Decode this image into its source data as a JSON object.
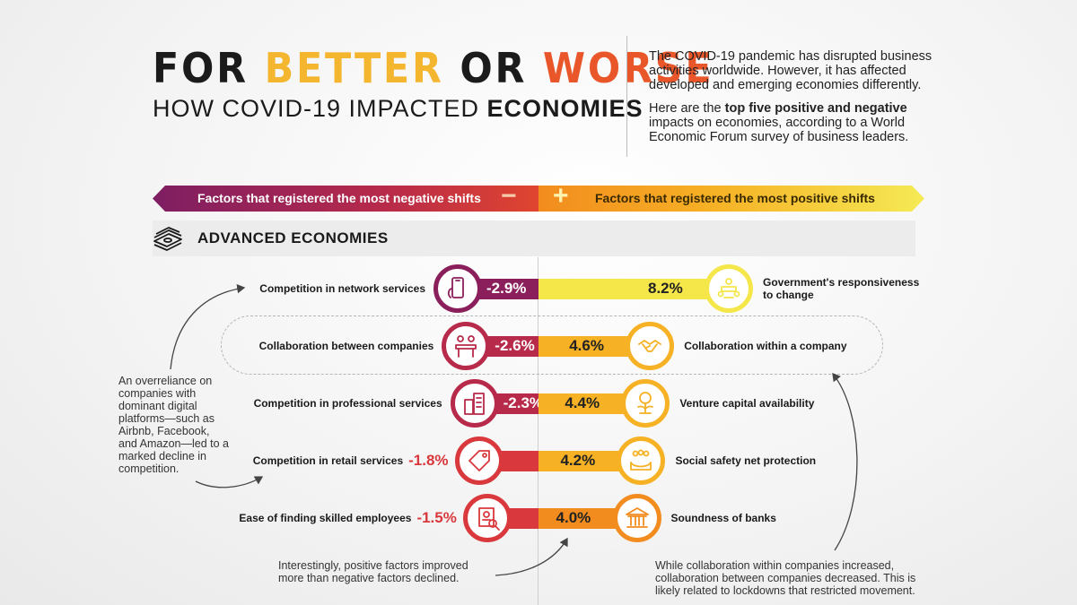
{
  "title": {
    "words": [
      "FOR",
      "BETTER",
      "OR",
      "WORSE"
    ],
    "subtitle_plain": "HOW COVID-19 IMPACTED",
    "subtitle_bold": "ECONOMIES"
  },
  "intro": {
    "p1": "The COVID-19 pandemic has disrupted business activities worldwide. However, it has affected developed and emerging economies differently.",
    "p2_a": "Here are the",
    "p2_bold": "top five positive and negative",
    "p2_b": "impacts on economies, according to a World Economic Forum survey of business leaders."
  },
  "banner": {
    "negative_label": "Factors that registered the most negative shifts",
    "negative_symbol": "−",
    "positive_label": "Factors that registered the most positive shifts",
    "positive_symbol": "+"
  },
  "section": {
    "title": "ADVANCED ECONOMIES",
    "icon": "money-stack-icon"
  },
  "colors": {
    "negative_dark": "#8a1f5c",
    "negative_mid": "#b72a4a",
    "negative_light": "#d9383c",
    "positive_light": "#f5e64a",
    "positive_mid": "#f6b125",
    "positive_dark": "#f28c1e"
  },
  "chart_data": {
    "type": "bar",
    "orientation": "diverging-horizontal",
    "negative": {
      "name": "Factors that registered the most negative shifts",
      "categories": [
        "Competition in network services",
        "Collaboration between companies",
        "Competition in professional services",
        "Competition in retail services",
        "Ease of finding skilled employees"
      ],
      "values": [
        -2.9,
        -2.6,
        -2.3,
        -1.8,
        -1.5
      ],
      "labels": [
        "-2.9%",
        "-2.6%",
        "-2.3%",
        "-1.8%",
        "-1.5%"
      ],
      "icons": [
        "smartphone-icon",
        "meeting-icon",
        "office-buildings-icon",
        "price-tag-icon",
        "resume-search-icon"
      ]
    },
    "positive": {
      "name": "Factors that registered the most positive shifts",
      "categories": [
        "Government's responsiveness to change",
        "Collaboration within a company",
        "Venture capital availability",
        "Social safety net protection",
        "Soundness of banks"
      ],
      "values": [
        8.2,
        4.6,
        4.4,
        4.2,
        4.0
      ],
      "labels": [
        "8.2%",
        "4.6%",
        "4.4%",
        "4.2%",
        "4.0%"
      ],
      "icons": [
        "government-meeting-icon",
        "handshake-icon",
        "money-plant-icon",
        "people-hands-icon",
        "bank-icon"
      ]
    }
  },
  "notes": {
    "left": "An overreliance on companies with dominant digital platforms—such as Airbnb, Facebook, and Amazon—led to a marked decline in competition.",
    "bottom": "Interestingly, positive factors improved more than negative factors declined.",
    "right": "While collaboration within companies increased, collaboration between companies decreased. This is likely related to lockdowns that restricted movement."
  }
}
